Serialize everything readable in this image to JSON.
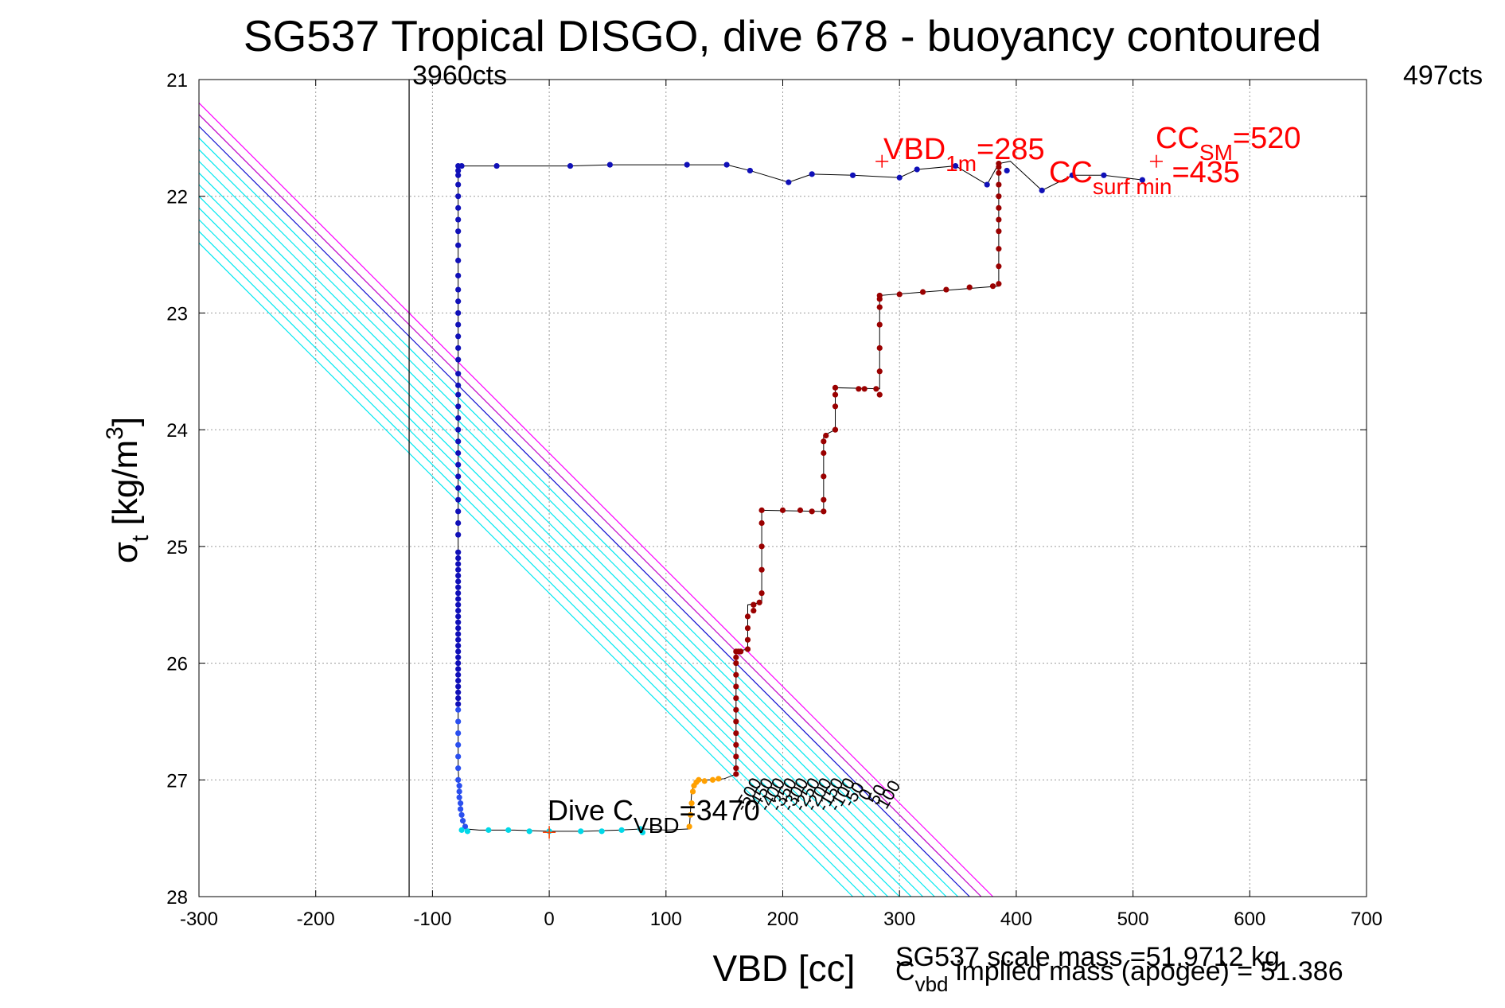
{
  "chart_data": {
    "type": "scatter",
    "title": "SG537 Tropical DISGO, dive 678 - buoyancy contoured",
    "xlabel": "VBD [cc]",
    "ylabel": {
      "main": "σ",
      "sub": "t",
      "unit": " [kg/m",
      "sup": "3",
      "close": "]"
    },
    "xlim": [
      -300,
      700
    ],
    "ylim": [
      21,
      28
    ],
    "y_reversed": true,
    "x_ticks": [
      -300,
      -200,
      -100,
      0,
      100,
      200,
      300,
      400,
      500,
      600,
      700
    ],
    "y_ticks": [
      21,
      22,
      23,
      24,
      25,
      26,
      27,
      28
    ],
    "grid": true,
    "annotations": {
      "left_limit": {
        "x": -120,
        "label": "3960cts"
      },
      "right_limit": {
        "label": "497cts"
      },
      "vbd_1m": {
        "x": 285,
        "y": 21.7,
        "main": "VBD",
        "sub": "1m",
        "value": "=285"
      },
      "cc_sm": {
        "x": 520,
        "y": 21.7,
        "main": "CC",
        "sub": "SM",
        "value": "=520"
      },
      "cc_surf_min": {
        "main": "CC",
        "sub": "surf min",
        "value": "=435"
      },
      "dive_c_vbd": {
        "x": 0,
        "y": 27.45,
        "main": "Dive C",
        "sub": "VBD",
        "value": "=3470"
      }
    },
    "footer": {
      "scale_mass": "SG537 scale mass =51.9712 kg",
      "implied_mass": {
        "main": "C",
        "sub": "vbd",
        "rest": " implied mass (apogee) = 51.386"
      }
    },
    "contours": [
      {
        "level": -500,
        "label": "-500"
      },
      {
        "level": -450,
        "label": "-450"
      },
      {
        "level": -400,
        "label": "-400"
      },
      {
        "level": -350,
        "label": "-350"
      },
      {
        "level": -300,
        "label": "-300"
      },
      {
        "level": -250,
        "label": "-250"
      },
      {
        "level": -200,
        "label": "-200"
      },
      {
        "level": -150,
        "label": "-150"
      },
      {
        "level": -100,
        "label": "-100"
      },
      {
        "level": -50,
        "label": "-50"
      },
      {
        "level": 0,
        "label": "0"
      },
      {
        "level": 50,
        "label": "50"
      },
      {
        "level": 100,
        "label": "100"
      }
    ],
    "series": [
      {
        "x": [
          -78,
          -78,
          -78,
          -78,
          -78,
          -78,
          -78,
          -78,
          -78,
          -78,
          -78,
          -78,
          -78,
          -78,
          -78,
          -78,
          -78,
          -78,
          -78,
          -78,
          -78,
          -78,
          -78,
          -78,
          -78,
          -78,
          -78,
          -78,
          -78,
          -78,
          -78,
          -78,
          -78,
          -78,
          -78,
          -78,
          -78,
          -78,
          -78,
          -78,
          -78,
          -78,
          -78,
          -78,
          -78,
          -78,
          -78,
          -78,
          -78,
          -78,
          -78,
          -78,
          -78,
          -78,
          -78,
          -78,
          -78,
          -78,
          -78,
          -78
        ],
        "y": [
          21.74,
          21.78,
          21.82,
          21.9,
          22.0,
          22.1,
          22.2,
          22.3,
          22.42,
          22.55,
          22.68,
          22.8,
          22.9,
          23.0,
          23.1,
          23.2,
          23.3,
          23.4,
          23.52,
          23.62,
          23.7,
          23.8,
          23.9,
          24.0,
          24.1,
          24.2,
          24.3,
          24.4,
          24.5,
          24.6,
          24.7,
          24.8,
          24.9,
          25.05,
          25.1,
          25.15,
          25.2,
          25.25,
          25.3,
          25.35,
          25.4,
          25.45,
          25.5,
          25.55,
          25.6,
          25.65,
          25.7,
          25.75,
          25.8,
          25.85,
          25.9,
          25.95,
          26.0,
          26.05,
          26.1,
          26.15,
          26.2,
          26.25,
          26.3,
          26.35
        ],
        "color": "#1010b8"
      },
      {
        "x": [
          -78,
          -78,
          -78,
          -78,
          -78,
          -78,
          -78,
          -77,
          -77,
          -77,
          -76,
          -76,
          -75,
          -74,
          -72
        ],
        "y": [
          26.4,
          26.5,
          26.6,
          26.7,
          26.8,
          26.9,
          27.0,
          27.05,
          27.1,
          27.15,
          27.2,
          27.25,
          27.3,
          27.35,
          27.4
        ],
        "color": "#2a4ff0"
      },
      {
        "x": [
          -75,
          -70,
          -52,
          -35,
          -17,
          0,
          27,
          45,
          62,
          78,
          80
        ],
        "y": [
          27.43,
          27.44,
          27.43,
          27.43,
          27.44,
          27.44,
          27.44,
          27.44,
          27.43,
          27.42,
          27.45
        ],
        "color": "#00d8e8"
      },
      {
        "x": [
          120,
          121,
          122,
          123,
          124,
          126,
          128,
          133,
          140,
          145
        ],
        "y": [
          27.4,
          27.3,
          27.2,
          27.1,
          27.05,
          27.02,
          27.0,
          27.01,
          27.0,
          26.99
        ],
        "color": "#ffa000"
      },
      {
        "x": [
          160,
          160,
          160,
          160,
          160,
          160,
          160,
          160,
          160,
          160,
          160,
          160,
          160,
          162,
          164,
          170,
          170,
          170,
          170,
          175,
          175,
          175,
          180,
          182,
          182,
          182,
          182,
          182,
          200,
          215,
          225,
          235,
          235,
          235,
          235,
          235,
          237,
          245,
          245,
          245,
          245,
          265,
          270,
          280,
          283,
          283,
          283,
          283,
          283,
          283,
          283,
          300,
          320,
          340,
          360,
          380,
          385,
          385,
          385,
          385,
          385,
          385,
          385,
          385,
          385,
          385,
          385
        ],
        "y": [
          26.95,
          26.9,
          26.8,
          26.7,
          26.6,
          26.5,
          26.4,
          26.3,
          26.2,
          26.1,
          26.0,
          25.95,
          25.9,
          25.9,
          25.9,
          25.88,
          25.8,
          25.7,
          25.6,
          25.55,
          25.5,
          25.5,
          25.48,
          25.4,
          25.2,
          25.0,
          24.8,
          24.69,
          24.69,
          24.69,
          24.7,
          24.7,
          24.6,
          24.4,
          24.2,
          24.1,
          24.05,
          24.0,
          23.8,
          23.7,
          23.64,
          23.65,
          23.65,
          23.65,
          23.7,
          23.5,
          23.3,
          23.1,
          22.95,
          22.88,
          22.85,
          22.84,
          22.82,
          22.8,
          22.78,
          22.77,
          22.75,
          22.6,
          22.45,
          22.3,
          22.2,
          22.1,
          22.0,
          21.9,
          21.8,
          21.75,
          21.72
        ],
        "color": "#9a0000"
      },
      {
        "x": [
          -75,
          -45,
          18,
          52,
          118,
          152,
          172,
          205,
          225,
          260,
          300,
          315,
          348,
          375,
          392,
          422,
          448,
          475,
          508
        ],
        "y": [
          21.74,
          21.74,
          21.74,
          21.73,
          21.73,
          21.73,
          21.78,
          21.88,
          21.81,
          21.82,
          21.84,
          21.77,
          21.74,
          21.9,
          21.78,
          21.95,
          21.82,
          21.82,
          21.86
        ],
        "color": "#1010b8"
      }
    ],
    "dive_path": {
      "x": [
        -78,
        -78,
        -77,
        -75,
        -72,
        -60,
        -30,
        0,
        30,
        60,
        80,
        100,
        120,
        122,
        125,
        130,
        140,
        150,
        160,
        160,
        170,
        170,
        182,
        182,
        235,
        235,
        245,
        245,
        283,
        283,
        385,
        385,
        385,
        395,
        422,
        448,
        475,
        508
      ],
      "y": [
        21.74,
        26.9,
        27.1,
        27.3,
        27.42,
        27.43,
        27.43,
        27.44,
        27.44,
        27.43,
        27.42,
        27.43,
        27.42,
        27.1,
        27.02,
        27.0,
        27.0,
        26.99,
        26.95,
        25.9,
        25.88,
        25.5,
        25.48,
        24.69,
        24.7,
        24.05,
        24.0,
        23.64,
        23.65,
        22.85,
        22.77,
        21.72,
        21.72,
        21.7,
        21.95,
        21.82,
        21.82,
        21.86
      ]
    },
    "surface_path": {
      "x": [
        -78,
        -45,
        18,
        52,
        118,
        152,
        172,
        205,
        225,
        260,
        300,
        315,
        348,
        375,
        385
      ],
      "y": [
        21.74,
        21.74,
        21.74,
        21.73,
        21.73,
        21.73,
        21.78,
        21.88,
        21.81,
        21.82,
        21.84,
        21.77,
        21.74,
        21.9,
        21.72
      ]
    }
  }
}
